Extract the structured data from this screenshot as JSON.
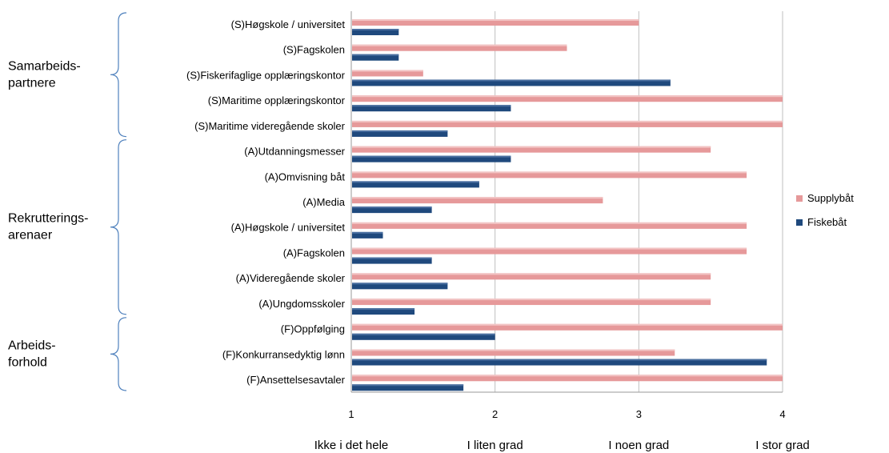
{
  "chart_data": {
    "type": "bar",
    "orientation": "horizontal",
    "categories": [
      "(S)Høgskole / universitet",
      "(S)Fagskolen",
      "(S)Fiskerifaglige opplæringskontor",
      "(S)Maritime opplæringskontor",
      "(S)Maritime videregående skoler",
      "(A)Utdanningsmesser",
      "(A)Omvisning båt",
      "(A)Media",
      "(A)Høgskole / universitet",
      "(A)Fagskolen",
      "(A)Videregående skoler",
      "(A)Ungdomsskoler",
      "(F)Oppfølging",
      "(F)Konkurransedyktig lønn",
      "(F)Ansettelsesavtaler"
    ],
    "series": [
      {
        "name": "Supplybåt",
        "color": "#E6999A",
        "values": [
          3.0,
          2.5,
          1.5,
          4.0,
          4.0,
          3.5,
          3.75,
          2.75,
          3.75,
          3.75,
          3.5,
          3.5,
          4.0,
          3.25,
          4.0
        ]
      },
      {
        "name": "Fiskebåt",
        "color": "#1F497D",
        "values": [
          1.33,
          1.33,
          3.22,
          2.11,
          1.67,
          2.11,
          1.89,
          1.56,
          1.22,
          1.56,
          1.67,
          1.44,
          2.0,
          3.89,
          1.78
        ]
      }
    ],
    "xlim": [
      1,
      4
    ],
    "xticks": [
      "1",
      "2",
      "3",
      "4"
    ],
    "scale_labels": [
      "Ikke i det hele",
      "I liten grad",
      "I noen grad",
      "I stor grad"
    ],
    "groups": [
      {
        "label": "Samarbeids-\npartnere",
        "start": 0,
        "end": 4
      },
      {
        "label": "Rekrutterings-\narenaer",
        "start": 5,
        "end": 11
      },
      {
        "label": "Arbeids-\nforhold",
        "start": 12,
        "end": 14
      }
    ],
    "legend": {
      "position": "right"
    },
    "grid": true
  }
}
